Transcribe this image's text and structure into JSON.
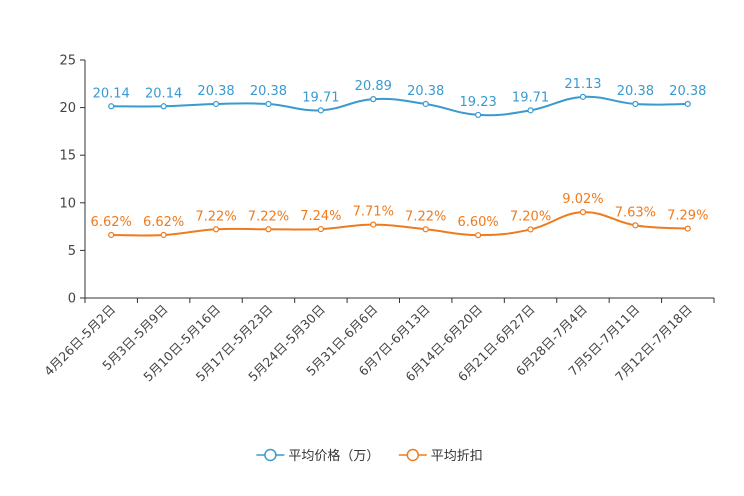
{
  "chart_data": {
    "type": "line",
    "title": "",
    "xlabel": "",
    "ylabel": "",
    "ylim": [
      0,
      25
    ],
    "yticks": [
      0,
      5,
      10,
      15,
      20,
      25
    ],
    "grid": false,
    "legend_position": "bottom-center",
    "categories": [
      "4月26日-5月2日",
      "5月3日-5月9日",
      "5月10日-5月16日",
      "5月17日-5月23日",
      "5月24日-5月30日",
      "5月31日-6月6日",
      "6月7日-6月13日",
      "6月14日-6月20日",
      "6月21日-6月27日",
      "6月28日-7月4日",
      "7月5日-7月11日",
      "7月12日-7月18日"
    ],
    "series": [
      {
        "name": "平均价格（万）",
        "color": "#3a9ad0",
        "values": [
          20.14,
          20.14,
          20.38,
          20.38,
          19.71,
          20.89,
          20.38,
          19.23,
          19.71,
          21.13,
          20.38,
          20.38
        ],
        "labels": [
          "20.14",
          "20.14",
          "20.38",
          "20.38",
          "19.71",
          "20.89",
          "20.38",
          "19.23",
          "19.71",
          "21.13",
          "20.38",
          "20.38"
        ]
      },
      {
        "name": "平均折扣",
        "color": "#f07b1d",
        "values": [
          6.62,
          6.62,
          7.22,
          7.22,
          7.24,
          7.71,
          7.22,
          6.6,
          7.2,
          9.02,
          7.63,
          7.29
        ],
        "labels": [
          "6.62%",
          "6.62%",
          "7.22%",
          "7.22%",
          "7.24%",
          "7.71%",
          "7.22%",
          "6.60%",
          "7.20%",
          "9.02%",
          "7.63%",
          "7.29%"
        ]
      }
    ]
  }
}
